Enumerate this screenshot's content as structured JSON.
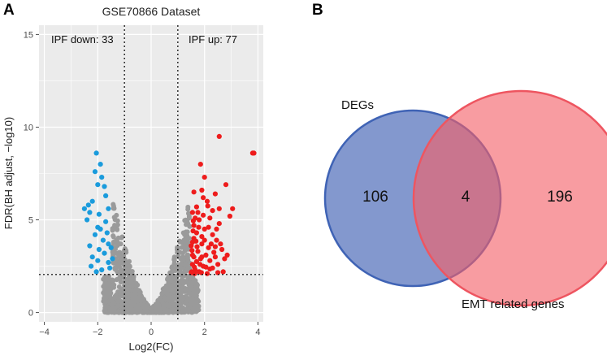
{
  "panels": {
    "a": "A",
    "b": "B"
  },
  "chart_data": [
    {
      "type": "scatter",
      "title": "GSE70866 Dataset",
      "xlabel": "Log2(FC)",
      "ylabel": "FDR(BH adjust, −log10)",
      "xlim": [
        -4.2,
        4.2
      ],
      "ylim": [
        -0.5,
        15.5
      ],
      "xticks": [
        -4,
        -2,
        0,
        2,
        4
      ],
      "yticks": [
        0,
        5,
        10,
        15
      ],
      "grid": true,
      "thresholds": {
        "log2fc": [
          -1,
          1
        ],
        "fdr_neglog10": 2.05
      },
      "annotations": {
        "down": "IPF down: 33",
        "up": "IPF up: 77"
      },
      "colors": {
        "down": "#1a9bdc",
        "up": "#ee1c1c",
        "ns": "#9a9a9a",
        "panel_bg": "#ebebeb",
        "grid": "#ffffff"
      },
      "series": [
        {
          "name": "IPF down",
          "color": "#1a9bdc",
          "points": [
            [
              -2.05,
              8.6
            ],
            [
              -1.9,
              8.0
            ],
            [
              -2.1,
              7.6
            ],
            [
              -1.85,
              7.3
            ],
            [
              -2.0,
              6.9
            ],
            [
              -2.2,
              6.0
            ],
            [
              -1.75,
              6.8
            ],
            [
              -2.5,
              5.6
            ],
            [
              -2.3,
              5.4
            ],
            [
              -1.95,
              5.3
            ],
            [
              -1.6,
              5.6
            ],
            [
              -2.4,
              5.0
            ],
            [
              -2.0,
              4.6
            ],
            [
              -1.7,
              4.9
            ],
            [
              -2.1,
              4.2
            ],
            [
              -1.8,
              3.9
            ],
            [
              -2.3,
              3.6
            ],
            [
              -1.6,
              3.7
            ],
            [
              -1.95,
              3.4
            ],
            [
              -2.2,
              3.0
            ],
            [
              -1.75,
              3.2
            ],
            [
              -2.0,
              2.8
            ],
            [
              -2.25,
              2.5
            ],
            [
              -1.6,
              2.7
            ],
            [
              -1.85,
              2.3
            ],
            [
              -1.45,
              2.9
            ],
            [
              -2.05,
              2.2
            ],
            [
              -1.5,
              3.5
            ],
            [
              -1.65,
              4.3
            ],
            [
              -1.55,
              2.4
            ],
            [
              -1.9,
              4.5
            ],
            [
              -2.35,
              5.8
            ],
            [
              -1.7,
              6.3
            ]
          ]
        },
        {
          "name": "IPF up",
          "color": "#ee1c1c",
          "points": [
            [
              3.8,
              8.6
            ],
            [
              3.85,
              8.6
            ],
            [
              2.55,
              9.5
            ],
            [
              1.85,
              8.0
            ],
            [
              2.8,
              6.9
            ],
            [
              3.05,
              5.6
            ],
            [
              2.95,
              5.2
            ],
            [
              2.0,
              7.3
            ],
            [
              1.6,
              6.5
            ],
            [
              1.9,
              6.6
            ],
            [
              2.4,
              6.4
            ],
            [
              2.1,
              6.0
            ],
            [
              1.7,
              5.7
            ],
            [
              1.55,
              5.4
            ],
            [
              2.2,
              5.1
            ],
            [
              1.8,
              5.0
            ],
            [
              2.55,
              4.8
            ],
            [
              1.6,
              4.7
            ],
            [
              2.0,
              4.5
            ],
            [
              2.3,
              4.2
            ],
            [
              1.7,
              4.3
            ],
            [
              2.45,
              3.9
            ],
            [
              1.55,
              3.8
            ],
            [
              1.9,
              3.7
            ],
            [
              2.15,
              3.5
            ],
            [
              2.65,
              3.4
            ],
            [
              1.5,
              3.6
            ],
            [
              1.75,
              3.3
            ],
            [
              2.05,
              3.1
            ],
            [
              2.4,
              3.0
            ],
            [
              1.6,
              3.0
            ],
            [
              1.85,
              2.9
            ],
            [
              2.2,
              2.8
            ],
            [
              1.55,
              2.6
            ],
            [
              1.95,
              2.5
            ],
            [
              2.3,
              2.4
            ],
            [
              1.65,
              2.3
            ],
            [
              1.8,
              2.2
            ],
            [
              2.1,
              2.1
            ],
            [
              1.5,
              2.15
            ],
            [
              2.5,
              2.6
            ],
            [
              2.75,
              2.9
            ],
            [
              1.6,
              4.0
            ],
            [
              1.72,
              3.55
            ],
            [
              2.0,
              3.9
            ],
            [
              1.9,
              4.1
            ],
            [
              2.25,
              3.7
            ],
            [
              1.55,
              3.1
            ],
            [
              1.7,
              2.75
            ],
            [
              2.35,
              3.25
            ],
            [
              1.83,
              2.6
            ],
            [
              2.05,
              2.45
            ],
            [
              1.62,
              2.45
            ],
            [
              2.6,
              3.7
            ],
            [
              2.15,
              4.6
            ],
            [
              1.75,
              5.4
            ],
            [
              2.45,
              4.5
            ],
            [
              1.65,
              5.1
            ],
            [
              1.95,
              5.25
            ],
            [
              1.57,
              4.4
            ],
            [
              2.2,
              2.35
            ],
            [
              1.52,
              2.2
            ],
            [
              1.88,
              2.15
            ],
            [
              2.7,
              2.2
            ],
            [
              2.85,
              3.1
            ],
            [
              1.58,
              4.95
            ],
            [
              2.3,
              5.5
            ],
            [
              1.95,
              6.2
            ],
            [
              2.12,
              5.75
            ],
            [
              1.68,
              3.85
            ],
            [
              1.78,
              4.6
            ],
            [
              2.55,
              5.6
            ],
            [
              1.53,
              3.35
            ],
            [
              1.63,
              2.1
            ],
            [
              2.5,
              2.15
            ],
            [
              1.9,
              3.0
            ],
            [
              2.4,
              3.55
            ]
          ]
        }
      ]
    },
    {
      "type": "venn",
      "sets": [
        {
          "name": "DEGs",
          "only_count": "106",
          "color": "#5b78c0"
        },
        {
          "name": "EMT related genes",
          "only_count": "196",
          "color": "#f56a72"
        }
      ],
      "intersection_count": "4"
    }
  ]
}
